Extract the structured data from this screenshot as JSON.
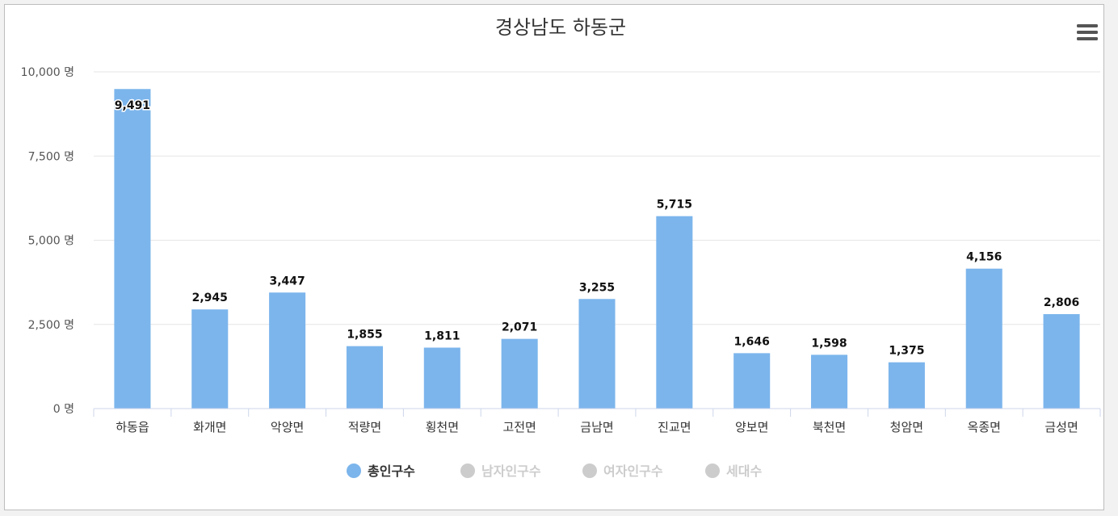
{
  "chart_data": {
    "type": "bar",
    "title": "경상남도 하동군",
    "categories": [
      "하동읍",
      "화개면",
      "악양면",
      "적량면",
      "횡천면",
      "고전면",
      "금남면",
      "진교면",
      "양보면",
      "북천면",
      "청암면",
      "옥종면",
      "금성면"
    ],
    "series": [
      {
        "name": "총인구수",
        "values": [
          9491,
          2945,
          3447,
          1855,
          1811,
          2071,
          3255,
          5715,
          1646,
          1598,
          1375,
          4156,
          2806
        ],
        "visible": true,
        "color": "#7cb5ec"
      }
    ],
    "y_ticks": [
      "0 명",
      "2,500 명",
      "5,000 명",
      "7,500 명",
      "10,000 명"
    ],
    "ylim": [
      0,
      10000
    ],
    "data_labels": [
      "9,491",
      "2,945",
      "3,447",
      "1,855",
      "1,811",
      "2,071",
      "3,255",
      "5,715",
      "1,646",
      "1,598",
      "1,375",
      "4,156",
      "2,806"
    ],
    "grid": true,
    "legend_placement": "bottom-center"
  },
  "legend": [
    {
      "label": "총인구수",
      "active": true,
      "color": "#7cb5ec"
    },
    {
      "label": "남자인구수",
      "active": false,
      "color": "#cccccc"
    },
    {
      "label": "여자인구수",
      "active": false,
      "color": "#cccccc"
    },
    {
      "label": "세대수",
      "active": false,
      "color": "#cccccc"
    }
  ],
  "menu_icon": "hamburger-menu-icon"
}
